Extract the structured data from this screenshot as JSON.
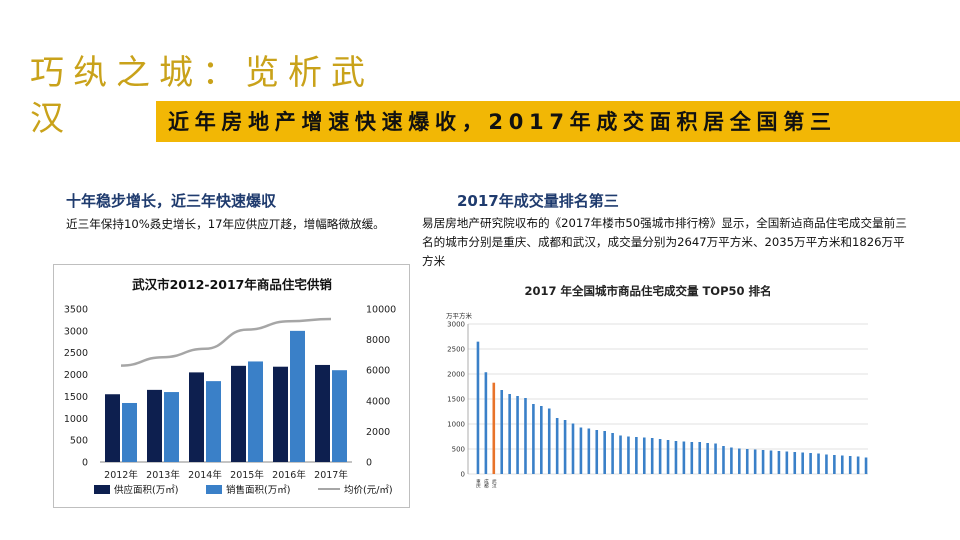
{
  "slide": {
    "title": "巧纨之城：览析武汉",
    "banner": "近年房地产增速快速爆收，2017年成交面积居全国第三"
  },
  "left_section": {
    "heading": "十年稳步增长，近三年快速爆収",
    "body": "近三年保持10%叒史增长，17年应供应丌趍，增幅略微放缓。"
  },
  "right_section": {
    "heading": "2017年成交量排名第三",
    "body": "易居房地产研究院収布的《2017年楼市50强城市排行榜》显示，全国新迠商品住宅成交量前三名的城市分别是重庆、成都和武汉，成交量分别为2647万平方米、2035万平方米和1826万平方米"
  },
  "chart_data": [
    {
      "type": "bar",
      "title": "武汉市2012-2017年商品住宅供销",
      "categories": [
        "2012年",
        "2013年",
        "2014年",
        "2015年",
        "2016年",
        "2017年"
      ],
      "series": [
        {
          "name": "供应面积(万㎡)",
          "type": "bar",
          "axis": "left",
          "color": "#0d1f4f",
          "values": [
            1550,
            1650,
            2050,
            2200,
            2180,
            2220
          ]
        },
        {
          "name": "销售面积(万㎡)",
          "type": "bar",
          "axis": "left",
          "color": "#3a80c8",
          "values": [
            1350,
            1600,
            1850,
            2300,
            3000,
            2100
          ]
        },
        {
          "name": "均价(元/㎡)",
          "type": "line",
          "axis": "right",
          "color": "#a6a6a6",
          "values": [
            6300,
            6850,
            7400,
            8650,
            9200,
            9350
          ]
        }
      ],
      "ylim_left": [
        0,
        3500
      ],
      "yticks_left": [
        "0",
        "500",
        "1000",
        "1500",
        "2000",
        "2500",
        "3000",
        "3500"
      ],
      "ylim_right": [
        0,
        10000
      ],
      "yticks_right": [
        "0",
        "2000",
        "4000",
        "6000",
        "8000",
        "10000"
      ],
      "legend_position": "bottom",
      "grid": false
    },
    {
      "type": "bar",
      "title": "2017 年全国城市商品住宅成交量 TOP50 排名",
      "ylabel": "万平方米",
      "ylim": [
        0,
        3000
      ],
      "yticks": [
        "0",
        "500",
        "1000",
        "1500",
        "2000",
        "2500",
        "3000"
      ],
      "bar_color": "#3a80c8",
      "highlight_color": "#e8732a",
      "highlight_index": 2,
      "categories": [
        "重庆",
        "成都",
        "武汉",
        "",
        "",
        "",
        "",
        "",
        "",
        "",
        "",
        "",
        "",
        "",
        "",
        "",
        "",
        "",
        "",
        "",
        "",
        "",
        "",
        "",
        "",
        "",
        "",
        "",
        "",
        "",
        "",
        "",
        "",
        "",
        "",
        "",
        "",
        "",
        "",
        "",
        "",
        "",
        "",
        "",
        "",
        "",
        "",
        "",
        "",
        ""
      ],
      "values": [
        2647,
        2035,
        1826,
        1680,
        1600,
        1560,
        1520,
        1400,
        1360,
        1310,
        1120,
        1080,
        1010,
        930,
        910,
        880,
        860,
        820,
        770,
        750,
        740,
        730,
        720,
        700,
        680,
        660,
        650,
        640,
        640,
        620,
        610,
        560,
        530,
        510,
        500,
        490,
        480,
        470,
        460,
        450,
        440,
        430,
        420,
        410,
        390,
        380,
        370,
        360,
        350,
        330
      ],
      "grid": true
    }
  ]
}
